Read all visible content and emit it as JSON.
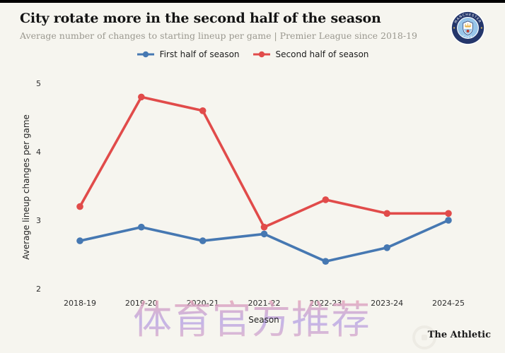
{
  "chart_data": {
    "type": "line",
    "title": "City rotate more in the second half of the season",
    "subtitle": "Average number of changes to starting lineup per game | Premier League since 2018-19",
    "categories": [
      "2018-19",
      "2019-20",
      "2020-21",
      "2021-22",
      "2022-23",
      "2023-24",
      "2024-25"
    ],
    "series": [
      {
        "name": "First half of season",
        "color": "#4678b2",
        "values": [
          2.7,
          2.9,
          2.7,
          2.8,
          2.4,
          2.6,
          3.0
        ]
      },
      {
        "name": "Second half of season",
        "color": "#e14b4a",
        "values": [
          3.2,
          4.8,
          4.6,
          2.9,
          3.3,
          3.1,
          3.1
        ]
      }
    ],
    "xlabel": "Season",
    "ylabel": "Average lineup changes per game",
    "ylim": [
      2,
      5
    ],
    "yticks": [
      2,
      3,
      4,
      5
    ],
    "grid": false,
    "legend_position": "top-center",
    "marker": "circle",
    "background_color": "#f6f5ef"
  },
  "badge": {
    "top_text": "MANCHESTER",
    "bottom_text": "CITY",
    "ring_color": "#24366b",
    "inner_color": "#98c5e9"
  },
  "watermark": {
    "text": "体育官方推荐"
  },
  "branding": {
    "label": "The Athletic"
  }
}
